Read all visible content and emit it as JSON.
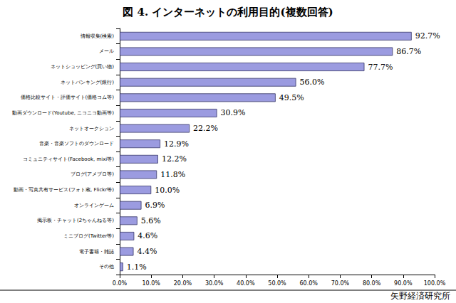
{
  "chart_data": {
    "type": "bar",
    "orientation": "horizontal",
    "title": "図 4. インターネットの利用目的(複数回答)",
    "annotations": [
      "矢野経済研究所"
    ],
    "categories": [
      "情報収集(検索)",
      "メール",
      "ネットショッピング(買い物)",
      "ネットバンキング(銀行)",
      "価格比較サイト・評価サイト(価格コム等)",
      "動画ダウンロード(Youtube, ニコニコ動画等)",
      "ネットオークション",
      "音楽・音楽ソフトのダウンロード",
      "コミュニティサイト(Facebook, mixi等)",
      "ブログ(アメブロ等)",
      "動画・写真共有サービス(フォト蔵, Flickr等)",
      "オンラインゲーム",
      "掲示板・チャット(2ちゃんねる等)",
      "ミニブログ(Twitter等)",
      "電子書籍・雑誌",
      "その他"
    ],
    "values": [
      92.7,
      86.7,
      77.7,
      56.0,
      49.5,
      30.9,
      22.2,
      12.9,
      12.2,
      11.8,
      10.0,
      6.9,
      5.6,
      4.6,
      4.4,
      1.1
    ],
    "value_labels": [
      "92.7%",
      "86.7%",
      "77.7%",
      "56.0%",
      "49.5%",
      "30.9%",
      "22.2%",
      "12.9%",
      "12.2%",
      "11.8%",
      "10.0%",
      "6.9%",
      "5.6%",
      "4.6%",
      "4.4%",
      "1.1%"
    ],
    "data_labels": true,
    "color": "#9b9be0",
    "grid": false,
    "xlim": [
      0,
      100
    ],
    "xticks": [
      {
        "value": 0,
        "label": "0.0%"
      },
      {
        "value": 10,
        "label": "10.0%"
      },
      {
        "value": 20,
        "label": "20.0%"
      },
      {
        "value": 30,
        "label": "30.0%"
      },
      {
        "value": 40,
        "label": "40.0%"
      },
      {
        "value": 50,
        "label": "50.0%"
      },
      {
        "value": 60,
        "label": "60.0%"
      },
      {
        "value": 70,
        "label": "70.0%"
      },
      {
        "value": 80,
        "label": "80.0%"
      },
      {
        "value": 90,
        "label": "90.0%"
      },
      {
        "value": 100,
        "label": "100.0%"
      }
    ]
  }
}
